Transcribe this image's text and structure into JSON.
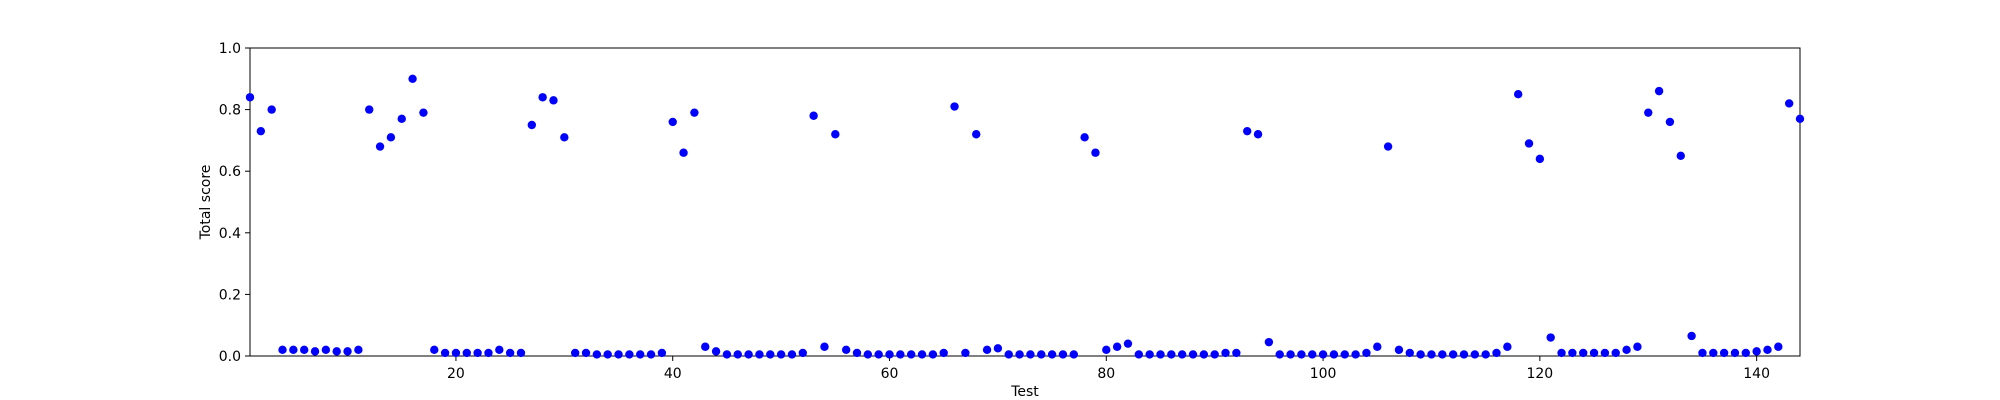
{
  "chart_data": {
    "type": "scatter",
    "xlabel": "Test",
    "ylabel": "Total score",
    "xlim": [
      1,
      144
    ],
    "ylim": [
      0,
      1
    ],
    "xticks": [
      20,
      40,
      60,
      80,
      100,
      120,
      140
    ],
    "yticks": [
      0.0,
      0.2,
      0.4,
      0.6,
      0.8,
      1.0
    ],
    "yticklabels": [
      "0.0",
      "0.2",
      "0.4",
      "0.6",
      "0.8",
      "1.0"
    ],
    "grid": false,
    "marker_color": "#0000ff",
    "series": [
      {
        "x": [
          1,
          2,
          3,
          4,
          5,
          6,
          7,
          8,
          9,
          10,
          11,
          12,
          13,
          14,
          15,
          16,
          17,
          18,
          19,
          20,
          21,
          22,
          23,
          24,
          25,
          26,
          27,
          28,
          29,
          30,
          31,
          32,
          33,
          34,
          35,
          36,
          37,
          38,
          39,
          40,
          41,
          42,
          43,
          44,
          45,
          46,
          47,
          48,
          49,
          50,
          51,
          52,
          53,
          54,
          55,
          56,
          57,
          58,
          59,
          60,
          61,
          62,
          63,
          64,
          65,
          66,
          67,
          68,
          69,
          70,
          71,
          72,
          73,
          74,
          75,
          76,
          77,
          78,
          79,
          80,
          81,
          82,
          83,
          84,
          85,
          86,
          87,
          88,
          89,
          90,
          91,
          92,
          93,
          94,
          95,
          96,
          97,
          98,
          99,
          100,
          101,
          102,
          103,
          104,
          105,
          106,
          107,
          108,
          109,
          110,
          111,
          112,
          113,
          114,
          115,
          116,
          117,
          118,
          119,
          120,
          121,
          122,
          123,
          124,
          125,
          126,
          127,
          128,
          129,
          130,
          131,
          132,
          133,
          134,
          135,
          136,
          137,
          138,
          139,
          140,
          141,
          142,
          143,
          144
        ],
        "y": [
          0.84,
          0.73,
          0.8,
          0.02,
          0.02,
          0.02,
          0.015,
          0.02,
          0.015,
          0.015,
          0.02,
          0.8,
          0.68,
          0.71,
          0.77,
          0.9,
          0.79,
          0.02,
          0.01,
          0.01,
          0.01,
          0.01,
          0.01,
          0.02,
          0.01,
          0.01,
          0.75,
          0.84,
          0.83,
          0.71,
          0.01,
          0.01,
          0.005,
          0.005,
          0.005,
          0.005,
          0.005,
          0.005,
          0.01,
          0.76,
          0.66,
          0.79,
          0.03,
          0.015,
          0.005,
          0.005,
          0.005,
          0.005,
          0.005,
          0.005,
          0.005,
          0.01,
          0.78,
          0.03,
          0.72,
          0.02,
          0.01,
          0.005,
          0.005,
          0.005,
          0.005,
          0.005,
          0.005,
          0.005,
          0.01,
          0.81,
          0.01,
          0.72,
          0.02,
          0.025,
          0.005,
          0.005,
          0.005,
          0.005,
          0.005,
          0.005,
          0.005,
          0.71,
          0.66,
          0.02,
          0.03,
          0.04,
          0.005,
          0.005,
          0.005,
          0.005,
          0.005,
          0.005,
          0.005,
          0.005,
          0.01,
          0.01,
          0.73,
          0.72,
          0.045,
          0.005,
          0.005,
          0.005,
          0.005,
          0.005,
          0.005,
          0.005,
          0.005,
          0.01,
          0.03,
          0.68,
          0.02,
          0.01,
          0.005,
          0.005,
          0.005,
          0.005,
          0.005,
          0.005,
          0.005,
          0.01,
          0.03,
          0.85,
          0.69,
          0.64,
          0.06,
          0.01,
          0.01,
          0.01,
          0.01,
          0.01,
          0.01,
          0.02,
          0.03,
          0.79,
          0.86,
          0.76,
          0.65,
          0.065,
          0.01,
          0.01,
          0.01,
          0.01,
          0.01,
          0.015,
          0.02,
          0.03,
          0.82,
          0.77
        ]
      }
    ]
  }
}
